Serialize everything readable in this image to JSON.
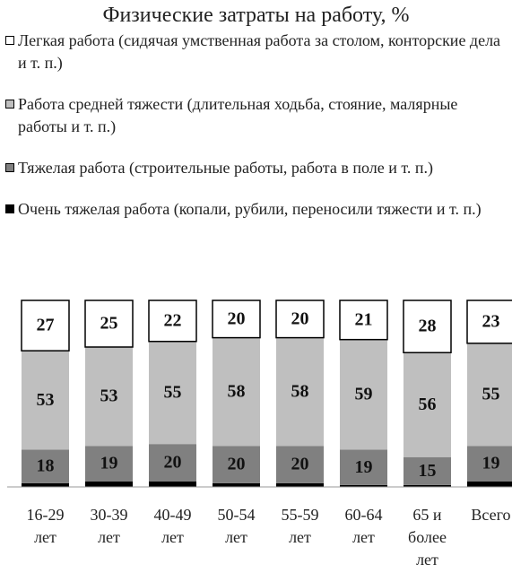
{
  "chart_data": {
    "type": "stacked_bar",
    "title": "Физические затраты на работу, %",
    "categories": [
      "16-29 лет",
      "30-39 лет",
      "40-49 лет",
      "50-54 лет",
      "55-59 лет",
      "60-64 лет",
      "65 и более лет",
      "Всего"
    ],
    "ylim": [
      0,
      100
    ],
    "series": [
      {
        "name": "Легкая работа (сидячая умственная работа за столом, конторские дела и т. п.)",
        "color": "#ffffff",
        "values": [
          27,
          25,
          22,
          20,
          20,
          21,
          28,
          23
        ]
      },
      {
        "name": "Работа средней тяжести (длительная ходьба, стояние, малярные работы и т. п.)",
        "color": "#bfbfbf",
        "values": [
          53,
          53,
          55,
          58,
          58,
          59,
          56,
          55
        ]
      },
      {
        "name": "Тяжелая работа (строительные работы, работа в поле и т. п.)",
        "color": "#808080",
        "values": [
          18,
          19,
          20,
          20,
          20,
          19,
          15,
          19
        ]
      },
      {
        "name": "Очень тяжелая работа (копали, рубили, переносили тяжести и т. п.)",
        "color": "#000000",
        "values": [
          2,
          3,
          3,
          2,
          2,
          1,
          1,
          3
        ]
      }
    ],
    "labeled_series": [
      0,
      1,
      2
    ]
  }
}
